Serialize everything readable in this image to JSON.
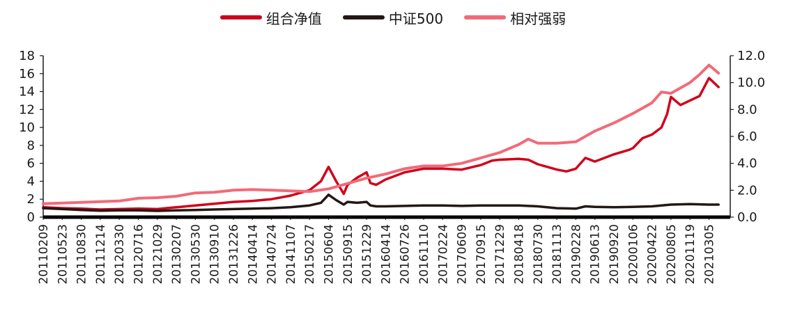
{
  "chart_data": {
    "type": "line",
    "title": "",
    "legend_position": "top-center",
    "grid": false,
    "y_left": {
      "ticks": [
        "0",
        "2",
        "4",
        "6",
        "8",
        "10",
        "12",
        "14",
        "16",
        "18"
      ],
      "range": [
        0,
        18
      ]
    },
    "y_right": {
      "ticks": [
        "0.0",
        "2.0",
        "4.0",
        "6.0",
        "8.0",
        "10.0",
        "12.0"
      ],
      "range": [
        0,
        12
      ]
    },
    "x_ticks": [
      "20110209",
      "20110523",
      "20110830",
      "20111214",
      "20120330",
      "20120716",
      "20121029",
      "20130207",
      "20130530",
      "20130910",
      "20131226",
      "20140414",
      "20140724",
      "20141107",
      "20150217",
      "20150604",
      "20150915",
      "20151229",
      "20160414",
      "20160726",
      "20161110",
      "20170224",
      "20170609",
      "20170915",
      "20171229",
      "20180418",
      "20180730",
      "20181113",
      "20190228",
      "20190613",
      "20190920",
      "20200106",
      "20200422",
      "20200805",
      "20201119",
      "20210305"
    ],
    "series": [
      {
        "name": "组合净值",
        "axis": "left",
        "color": "#d0021b",
        "x": [
          0,
          1,
          2,
          3,
          4,
          5,
          6,
          7,
          8,
          9,
          10,
          11,
          12,
          13,
          14,
          14.6,
          15,
          15.4,
          15.8,
          16,
          16.5,
          17,
          17.2,
          17.5,
          18,
          19,
          20,
          21,
          22,
          23,
          23.6,
          24,
          25,
          25.5,
          26,
          26.5,
          27,
          27.5,
          28,
          28.5,
          29,
          30,
          30.8,
          31,
          31.5,
          32,
          32.5,
          32.8,
          33,
          33.5,
          34,
          34.5,
          35,
          35.5
        ],
        "values": [
          1.1,
          1.0,
          0.95,
          0.85,
          0.9,
          0.95,
          0.9,
          1.1,
          1.3,
          1.5,
          1.7,
          1.8,
          2.0,
          2.4,
          3.0,
          4.0,
          5.6,
          4.0,
          2.6,
          3.6,
          4.4,
          5.0,
          3.8,
          3.6,
          4.2,
          5.0,
          5.4,
          5.4,
          5.3,
          5.8,
          6.3,
          6.4,
          6.5,
          6.4,
          5.9,
          5.6,
          5.3,
          5.1,
          5.4,
          6.6,
          6.2,
          7.0,
          7.5,
          7.7,
          8.8,
          9.2,
          10.0,
          11.5,
          13.4,
          12.5,
          13.0,
          13.5,
          15.5,
          14.5
        ]
      },
      {
        "name": "中证500",
        "axis": "left",
        "color": "#231815",
        "x": [
          0,
          1,
          2,
          3,
          4,
          5,
          6,
          7,
          8,
          9,
          10,
          11,
          12,
          13,
          14,
          14.6,
          15,
          15.4,
          15.8,
          16,
          16.5,
          17,
          17.2,
          17.5,
          18,
          19,
          20,
          21,
          22,
          23,
          24,
          25,
          26,
          27,
          28,
          28.5,
          29,
          30,
          31,
          32,
          33,
          34,
          35,
          35.5
        ],
        "values": [
          1.0,
          0.9,
          0.8,
          0.72,
          0.75,
          0.75,
          0.7,
          0.75,
          0.8,
          0.85,
          0.9,
          0.95,
          1.0,
          1.1,
          1.3,
          1.6,
          2.5,
          1.9,
          1.4,
          1.7,
          1.6,
          1.7,
          1.3,
          1.2,
          1.2,
          1.25,
          1.3,
          1.3,
          1.25,
          1.3,
          1.3,
          1.3,
          1.2,
          1.0,
          0.95,
          1.2,
          1.15,
          1.1,
          1.15,
          1.2,
          1.4,
          1.45,
          1.4,
          1.4
        ]
      },
      {
        "name": "相对强弱",
        "axis": "right",
        "color": "#f26a78",
        "x": [
          0,
          1,
          2,
          3,
          4,
          5,
          6,
          7,
          8,
          9,
          10,
          11,
          12,
          13,
          14,
          15,
          16,
          17,
          18,
          19,
          20,
          21,
          22,
          23,
          24,
          25,
          25.5,
          26,
          27,
          28,
          29,
          30,
          31,
          32,
          32.5,
          33,
          33.5,
          34,
          34.5,
          35,
          35.5
        ],
        "values": [
          1.0,
          1.05,
          1.1,
          1.15,
          1.2,
          1.4,
          1.45,
          1.55,
          1.8,
          1.85,
          2.0,
          2.05,
          2.0,
          1.95,
          1.9,
          2.1,
          2.5,
          2.9,
          3.2,
          3.6,
          3.8,
          3.8,
          4.0,
          4.4,
          4.8,
          5.4,
          5.8,
          5.5,
          5.5,
          5.6,
          6.4,
          7.0,
          7.7,
          8.5,
          9.3,
          9.2,
          9.6,
          10.0,
          10.6,
          11.3,
          10.7
        ]
      }
    ]
  }
}
